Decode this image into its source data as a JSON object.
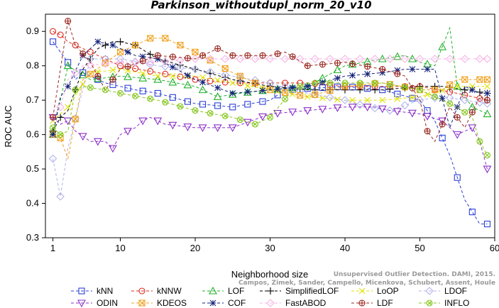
{
  "chart_data": {
    "type": "line",
    "title": "Parkinson_withoutdupl_norm_20_v10",
    "xlabel": "Neighborhood size",
    "ylabel": "ROC AUC",
    "xlim": [
      0,
      60
    ],
    "ylim": [
      0.3,
      0.95
    ],
    "xticks": [
      1,
      10,
      20,
      30,
      40,
      50,
      60
    ],
    "yticks": [
      0.3,
      0.4,
      0.5,
      0.6,
      0.7,
      0.8,
      0.9
    ],
    "xtick_labels": [
      "1",
      "10",
      "20",
      "30",
      "40",
      "50",
      "60"
    ],
    "ytick_labels": [
      "0.3",
      "0.4",
      "0.5",
      "0.6",
      "0.7",
      "0.8",
      "0.9"
    ],
    "grid": false,
    "legend_position": "bottom",
    "credit": "Campos, Zimek, Sander, Campello, Micenkova, Schubert, Assent, Houle",
    "credit_title": "Unsupervised Outlier Detection. DAMI, 2015.",
    "series": [
      {
        "name": "kNN",
        "color": "#2b3fd6",
        "marker": "square",
        "knots": [
          [
            1,
            0.87
          ],
          [
            2,
            0.84
          ],
          [
            3,
            0.81
          ],
          [
            4,
            0.76
          ],
          [
            5,
            0.78
          ],
          [
            8,
            0.75
          ],
          [
            12,
            0.73
          ],
          [
            15,
            0.72
          ],
          [
            20,
            0.69
          ],
          [
            25,
            0.68
          ],
          [
            30,
            0.7
          ],
          [
            32,
            0.73
          ],
          [
            40,
            0.74
          ],
          [
            45,
            0.73
          ],
          [
            50,
            0.7
          ],
          [
            52,
            0.64
          ],
          [
            54,
            0.54
          ],
          [
            56,
            0.41
          ],
          [
            58,
            0.34
          ],
          [
            59,
            0.34
          ]
        ]
      },
      {
        "name": "kNNW",
        "color": "#dd2a1f",
        "marker": "circle",
        "knots": [
          [
            1,
            0.9
          ],
          [
            2,
            0.89
          ],
          [
            3,
            0.87
          ],
          [
            5,
            0.85
          ],
          [
            10,
            0.8
          ],
          [
            15,
            0.78
          ],
          [
            20,
            0.76
          ],
          [
            25,
            0.75
          ],
          [
            30,
            0.75
          ],
          [
            35,
            0.75
          ],
          [
            40,
            0.74
          ],
          [
            45,
            0.74
          ],
          [
            50,
            0.74
          ],
          [
            55,
            0.72
          ],
          [
            59,
            0.7
          ]
        ]
      },
      {
        "name": "LOF",
        "color": "#22b02a",
        "marker": "triangle-up",
        "knots": [
          [
            1,
            0.6
          ],
          [
            2,
            0.7
          ],
          [
            3,
            0.8
          ],
          [
            6,
            0.76
          ],
          [
            10,
            0.77
          ],
          [
            15,
            0.76
          ],
          [
            20,
            0.74
          ],
          [
            23,
            0.71
          ],
          [
            26,
            0.72
          ],
          [
            30,
            0.73
          ],
          [
            35,
            0.74
          ],
          [
            40,
            0.8
          ],
          [
            45,
            0.82
          ],
          [
            48,
            0.83
          ],
          [
            50,
            0.81
          ],
          [
            52,
            0.8
          ],
          [
            54,
            0.91
          ],
          [
            55,
            0.74
          ],
          [
            57,
            0.68
          ],
          [
            59,
            0.66
          ]
        ]
      },
      {
        "name": "SimplifiedLOF",
        "color": "#000000",
        "marker": "plus",
        "knots": [
          [
            1,
            0.61
          ],
          [
            2,
            0.65
          ],
          [
            3,
            0.67
          ],
          [
            5,
            0.79
          ],
          [
            7,
            0.85
          ],
          [
            9,
            0.87
          ],
          [
            10,
            0.87
          ],
          [
            12,
            0.86
          ],
          [
            15,
            0.82
          ],
          [
            20,
            0.79
          ],
          [
            25,
            0.76
          ],
          [
            30,
            0.74
          ],
          [
            35,
            0.73
          ],
          [
            40,
            0.73
          ],
          [
            45,
            0.73
          ],
          [
            50,
            0.74
          ],
          [
            53,
            0.74
          ],
          [
            56,
            0.73
          ],
          [
            59,
            0.72
          ]
        ]
      },
      {
        "name": "LoOP",
        "color": "#e0e000",
        "marker": "x",
        "knots": [
          [
            1,
            0.64
          ],
          [
            2,
            0.66
          ],
          [
            3,
            0.68
          ],
          [
            6,
            0.78
          ],
          [
            10,
            0.79
          ],
          [
            15,
            0.77
          ],
          [
            20,
            0.77
          ],
          [
            25,
            0.75
          ],
          [
            30,
            0.73
          ],
          [
            35,
            0.71
          ],
          [
            40,
            0.7
          ],
          [
            45,
            0.7
          ],
          [
            50,
            0.71
          ],
          [
            55,
            0.74
          ],
          [
            59,
            0.74
          ]
        ]
      },
      {
        "name": "LDOF",
        "color": "#b0b5e8",
        "marker": "diamond",
        "knots": [
          [
            1,
            0.53
          ],
          [
            2,
            0.42
          ],
          [
            3,
            0.56
          ],
          [
            6,
            0.82
          ],
          [
            10,
            0.82
          ],
          [
            15,
            0.8
          ],
          [
            20,
            0.79
          ],
          [
            25,
            0.77
          ],
          [
            30,
            0.75
          ],
          [
            35,
            0.72
          ],
          [
            40,
            0.7
          ],
          [
            43,
            0.68
          ],
          [
            46,
            0.67
          ],
          [
            50,
            0.7
          ],
          [
            53,
            0.71
          ],
          [
            56,
            0.7
          ],
          [
            59,
            0.69
          ]
        ]
      },
      {
        "name": "ODIN",
        "color": "#8b2fc9",
        "marker": "triangle-down",
        "knots": [
          [
            1,
            0.65
          ],
          [
            2,
            0.63
          ],
          [
            3,
            0.64
          ],
          [
            4,
            0.61
          ],
          [
            6,
            0.58
          ],
          [
            8,
            0.58
          ],
          [
            9,
            0.56
          ],
          [
            10,
            0.6
          ],
          [
            12,
            0.62
          ],
          [
            13,
            0.64
          ],
          [
            14,
            0.65
          ],
          [
            16,
            0.63
          ],
          [
            20,
            0.62
          ],
          [
            25,
            0.62
          ],
          [
            30,
            0.66
          ],
          [
            35,
            0.67
          ],
          [
            40,
            0.68
          ],
          [
            44,
            0.68
          ],
          [
            46,
            0.67
          ],
          [
            50,
            0.66
          ],
          [
            53,
            0.64
          ],
          [
            55,
            0.6
          ],
          [
            57,
            0.62
          ],
          [
            58,
            0.58
          ],
          [
            59,
            0.5
          ]
        ]
      },
      {
        "name": "KDEOS",
        "color": "#f0a21f",
        "marker": "square-x",
        "knots": [
          [
            1,
            0.6
          ],
          [
            2,
            0.59
          ],
          [
            3,
            0.53
          ],
          [
            5,
            0.76
          ],
          [
            10,
            0.84
          ],
          [
            14,
            0.88
          ],
          [
            16,
            0.88
          ],
          [
            20,
            0.84
          ],
          [
            25,
            0.78
          ],
          [
            30,
            0.73
          ],
          [
            35,
            0.71
          ],
          [
            40,
            0.74
          ],
          [
            45,
            0.75
          ],
          [
            50,
            0.73
          ],
          [
            53,
            0.73
          ],
          [
            55,
            0.76
          ],
          [
            59,
            0.76
          ]
        ]
      },
      {
        "name": "COF",
        "color": "#14237a",
        "marker": "asterisk",
        "knots": [
          [
            1,
            0.6
          ],
          [
            2,
            0.71
          ],
          [
            3,
            0.74
          ],
          [
            5,
            0.83
          ],
          [
            7,
            0.87
          ],
          [
            9,
            0.86
          ],
          [
            12,
            0.83
          ],
          [
            15,
            0.82
          ],
          [
            20,
            0.76
          ],
          [
            25,
            0.72
          ],
          [
            30,
            0.73
          ],
          [
            35,
            0.74
          ],
          [
            40,
            0.77
          ],
          [
            45,
            0.78
          ],
          [
            48,
            0.79
          ],
          [
            50,
            0.79
          ],
          [
            52,
            0.79
          ],
          [
            54,
            0.62
          ],
          [
            56,
            0.74
          ],
          [
            58,
            0.72
          ],
          [
            59,
            0.72
          ]
        ]
      },
      {
        "name": "FastABOD",
        "color": "#f6b3e4",
        "marker": "diamond",
        "knots": [
          [
            1,
            0.65
          ],
          [
            2,
            0.68
          ],
          [
            3,
            0.76
          ],
          [
            5,
            0.8
          ],
          [
            10,
            0.81
          ],
          [
            15,
            0.81
          ],
          [
            20,
            0.82
          ],
          [
            25,
            0.82
          ],
          [
            30,
            0.82
          ],
          [
            35,
            0.82
          ],
          [
            40,
            0.82
          ],
          [
            45,
            0.82
          ],
          [
            50,
            0.82
          ],
          [
            55,
            0.82
          ],
          [
            59,
            0.82
          ]
        ]
      },
      {
        "name": "LDF",
        "color": "#9a2a22",
        "marker": "circle-plus",
        "knots": [
          [
            1,
            0.65
          ],
          [
            2,
            0.79
          ],
          [
            3,
            0.93
          ],
          [
            4,
            0.86
          ],
          [
            6,
            0.81
          ],
          [
            8,
            0.73
          ],
          [
            10,
            0.79
          ],
          [
            15,
            0.83
          ],
          [
            20,
            0.82
          ],
          [
            23,
            0.85
          ],
          [
            25,
            0.83
          ],
          [
            30,
            0.83
          ],
          [
            32,
            0.84
          ],
          [
            35,
            0.8
          ],
          [
            40,
            0.81
          ],
          [
            45,
            0.79
          ],
          [
            48,
            0.77
          ],
          [
            50,
            0.7
          ],
          [
            51,
            0.61
          ],
          [
            52,
            0.58
          ],
          [
            54,
            0.68
          ],
          [
            56,
            0.62
          ],
          [
            58,
            0.71
          ],
          [
            59,
            0.7
          ]
        ]
      },
      {
        "name": "INFLO",
        "color": "#86c71f",
        "marker": "circle-x",
        "knots": [
          [
            1,
            0.62
          ],
          [
            2,
            0.6
          ],
          [
            3,
            0.61
          ],
          [
            4,
            0.73
          ],
          [
            5,
            0.74
          ],
          [
            8,
            0.73
          ],
          [
            10,
            0.72
          ],
          [
            15,
            0.7
          ],
          [
            20,
            0.67
          ],
          [
            25,
            0.65
          ],
          [
            28,
            0.63
          ],
          [
            30,
            0.65
          ],
          [
            33,
            0.73
          ],
          [
            35,
            0.75
          ],
          [
            40,
            0.75
          ],
          [
            45,
            0.75
          ],
          [
            50,
            0.73
          ],
          [
            53,
            0.7
          ],
          [
            55,
            0.68
          ],
          [
            57,
            0.65
          ],
          [
            58,
            0.58
          ],
          [
            59,
            0.54
          ]
        ]
      }
    ]
  }
}
